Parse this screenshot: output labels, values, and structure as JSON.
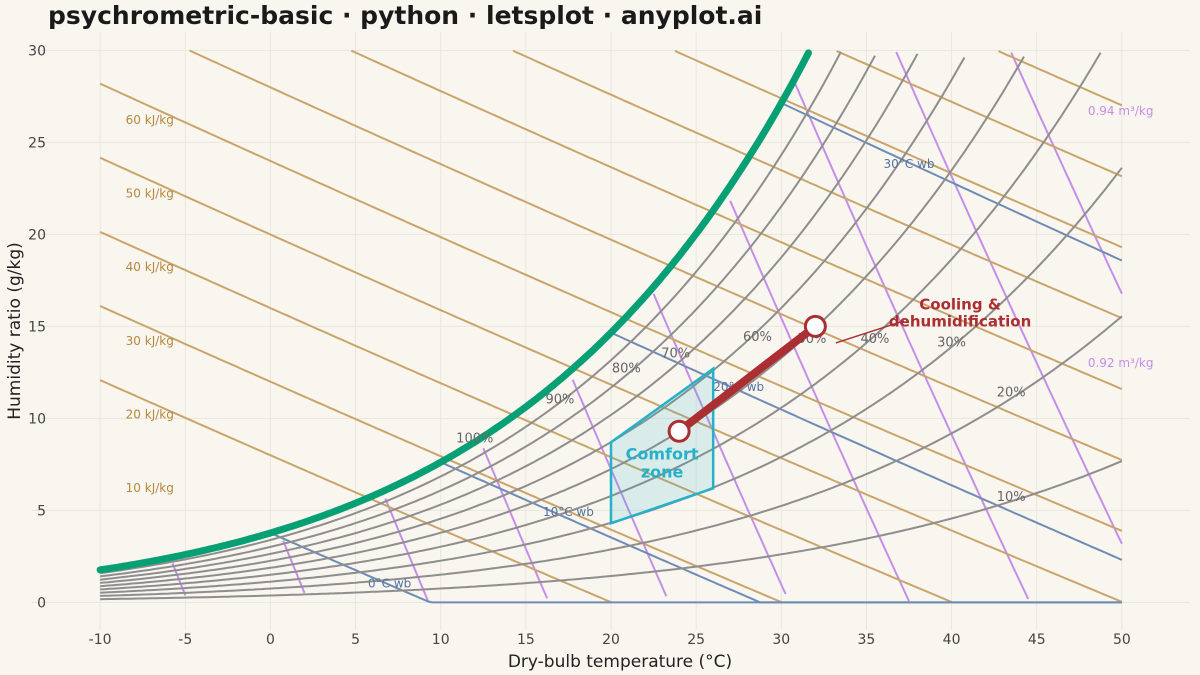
{
  "title": "psychrometric-basic · python · letsplot · anyplot.ai",
  "chart_data": {
    "type": "line",
    "xlabel": "Dry-bulb temperature (°C)",
    "ylabel": "Humidity ratio (g/kg)",
    "xlim": [
      -14,
      54
    ],
    "ylim": [
      -1.5,
      31
    ],
    "x_ticks": [
      -10,
      -5,
      0,
      5,
      10,
      15,
      20,
      25,
      30,
      35,
      40,
      45,
      50
    ],
    "y_ticks": [
      0,
      5,
      10,
      15,
      20,
      25,
      30
    ],
    "grid": true,
    "pressure_kpa": 101.325,
    "relative_humidity_lines": [
      10,
      20,
      30,
      40,
      50,
      60,
      70,
      80,
      90
    ],
    "relative_humidity_labels": [
      {
        "text": "100%",
        "x": 12,
        "y": 8.7
      },
      {
        "text": "90%",
        "x": 17,
        "y": 10.8
      },
      {
        "text": "80%",
        "x": 20.9,
        "y": 12.5
      },
      {
        "text": "70%",
        "x": 23.8,
        "y": 13.3
      },
      {
        "text": "60%",
        "x": 28.6,
        "y": 14.2
      },
      {
        "text": "50%",
        "x": 31.8,
        "y": 14.1
      },
      {
        "text": "40%",
        "x": 35.5,
        "y": 14.1
      },
      {
        "text": "30%",
        "x": 40,
        "y": 13.9
      },
      {
        "text": "20%",
        "x": 43.5,
        "y": 11.2
      },
      {
        "text": "10%",
        "x": 43.5,
        "y": 5.5
      }
    ],
    "wet_bulb_lines": [
      0,
      10,
      20,
      30
    ],
    "wet_bulb_labels": [
      {
        "text": "0°C wb",
        "x": 7,
        "y": 0.8
      },
      {
        "text": "10°C wb",
        "x": 17.5,
        "y": 4.7
      },
      {
        "text": "20°C wb",
        "x": 27.5,
        "y": 11.5
      },
      {
        "text": "30°C wb",
        "x": 37.5,
        "y": 23.6
      }
    ],
    "enthalpy_lines": [
      10,
      20,
      30,
      40,
      50,
      60
    ],
    "enthalpy_labels": [
      {
        "text": "10 kJ/kg",
        "x": -8.5,
        "y": 6
      },
      {
        "text": "20 kJ/kg",
        "x": -8.5,
        "y": 10
      },
      {
        "text": "30 kJ/kg",
        "x": -8.5,
        "y": 14
      },
      {
        "text": "40 kJ/kg",
        "x": -8.5,
        "y": 18
      },
      {
        "text": "50 kJ/kg",
        "x": -8.5,
        "y": 22
      },
      {
        "text": "60 kJ/kg",
        "x": -8.5,
        "y": 26
      }
    ],
    "specific_volume_lines": [
      0.76,
      0.78,
      0.8,
      0.82,
      0.84,
      0.86,
      0.88,
      0.9,
      0.92,
      0.94
    ],
    "specific_volume_labels": [
      {
        "text": "0.92 m³/kg",
        "x": 48,
        "y": 12.8
      },
      {
        "text": "0.94 m³/kg",
        "x": 48,
        "y": 26.5
      }
    ],
    "comfort_zone": {
      "label_line1": "Comfort",
      "label_line2": "zone",
      "polygon": [
        [
          20,
          4.3
        ],
        [
          26,
          6.2
        ],
        [
          26,
          12.7
        ],
        [
          20,
          8.7
        ]
      ],
      "label_x": 23,
      "label_y": 7.6
    },
    "process": {
      "label_line1": "Cooling &",
      "label_line2": "dehumidification",
      "start": [
        32,
        15.0
      ],
      "end": [
        24,
        9.3
      ],
      "label_x": 40.5,
      "label_y": 16.2,
      "leader_end": [
        33.2,
        14.1
      ]
    },
    "colors": {
      "saturation": "#079f74",
      "relative_humidity": "#8e8e8e",
      "wet_bulb": "#6f8cb5",
      "enthalpy": "#c9a56a",
      "specific_volume": "#c58ee8",
      "comfort": "#26b1c8",
      "process": "#ab2f32"
    }
  }
}
